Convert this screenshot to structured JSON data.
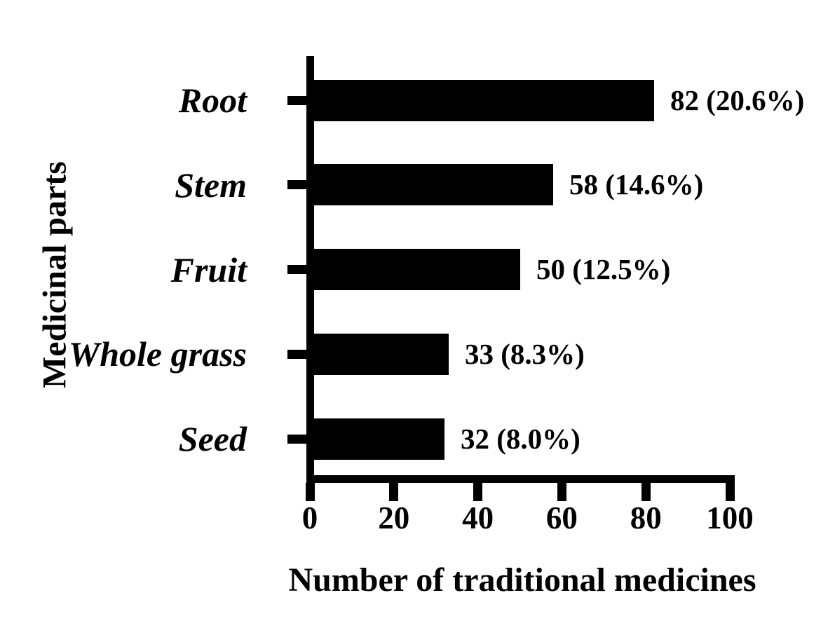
{
  "figure": {
    "background_color": "#ffffff",
    "bar_color": "#000000",
    "axis_color": "#000000",
    "text_color": "#000000"
  },
  "chart_data": {
    "type": "bar",
    "orientation": "horizontal",
    "title": "",
    "xlabel": "Number of traditional medicines",
    "ylabel": "Medicinal parts",
    "categories": [
      "Root",
      "Stem",
      "Fruit",
      "Whole grass",
      "Seed"
    ],
    "values": [
      82,
      58,
      50,
      33,
      32
    ],
    "percentages": [
      20.6,
      14.6,
      12.5,
      8.3,
      8.0
    ],
    "bar_labels": [
      "82 (20.6%)",
      "58 (14.6%)",
      "50 (12.5%)",
      "33 (8.3%)",
      "32 (8.0%)"
    ],
    "x_ticks": [
      "0",
      "20",
      "40",
      "60",
      "80",
      "100"
    ],
    "x_tick_values": [
      0,
      20,
      40,
      60,
      80,
      100
    ],
    "xlim": [
      0,
      100
    ],
    "grid": false,
    "legend": false
  }
}
